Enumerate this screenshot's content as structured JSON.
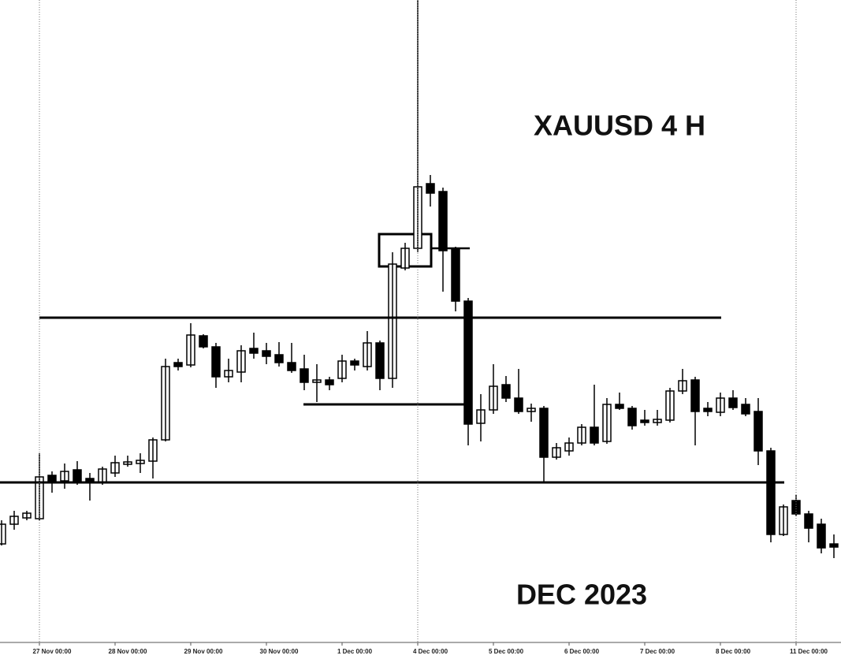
{
  "chart_data": {
    "type": "candlestick",
    "title": "XAUUSD 4 H",
    "subtitle": "DEC 2023",
    "categories": [
      null,
      null,
      null,
      "27 Nov 00:00",
      null,
      null,
      null,
      null,
      null,
      "28 Nov 00:00",
      null,
      null,
      null,
      null,
      null,
      "29 Nov 00:00",
      null,
      null,
      null,
      null,
      null,
      "30 Nov 00:00",
      null,
      null,
      null,
      null,
      null,
      "1 Dec 00:00",
      null,
      null,
      null,
      null,
      null,
      "4 Dec 00:00",
      null,
      null,
      null,
      null,
      null,
      "5 Dec 00:00",
      null,
      null,
      null,
      null,
      null,
      "6 Dec 00:00",
      null,
      null,
      null,
      null,
      null,
      "7 Dec 00:00",
      null,
      null,
      null,
      null,
      null,
      "8 Dec 00:00",
      null,
      null,
      null,
      null,
      null,
      "11 Dec 00:00",
      null,
      null,
      null
    ],
    "open": [
      1997,
      2002,
      2003.6,
      2003.4,
      2014.4,
      2013,
      2015.8,
      2013.6,
      2012.6,
      2015,
      2017.2,
      2017.4,
      2018,
      2023.4,
      2043,
      2042.4,
      2049.8,
      2047,
      2039.4,
      2040.6,
      2046.6,
      2046,
      2045,
      2043,
      2041.4,
      2038.2,
      2038.6,
      2039,
      2043.4,
      2042,
      2048,
      2039,
      2067,
      2072,
      2088.4,
      2086.4,
      2071.8,
      2058.6,
      2027.6,
      2031,
      2037.4,
      2034,
      2030.6,
      2031.4,
      2019,
      2020.6,
      2022.6,
      2026.6,
      2023,
      2032.4,
      2031.4,
      2028.4,
      2027.8,
      2028.4,
      2035.8,
      2038.6,
      2031.4,
      2030.4,
      2034,
      2032.4,
      2030.6,
      2020.6,
      1999.4,
      2008,
      2004.6,
      2002,
      1997
    ],
    "high": [
      2003,
      2005.4,
      2005.4,
      2020,
      2015.4,
      2017.4,
      2018,
      2015,
      2016.6,
      2019.4,
      2019.4,
      2020,
      2024,
      2044,
      2044,
      2053,
      2050.2,
      2048,
      2044,
      2047.4,
      2050.6,
      2048,
      2048.2,
      2048,
      2045,
      2042.6,
      2039.4,
      2045,
      2044,
      2051,
      2048.6,
      2071,
      2073.4,
      2135,
      2090.6,
      2087.4,
      2072.4,
      2059.4,
      2035,
      2042.6,
      2039.6,
      2041.4,
      2032.6,
      2032,
      2022.6,
      2024,
      2027.4,
      2037.4,
      2034,
      2035.4,
      2032,
      2031,
      2031,
      2036.6,
      2041.4,
      2039.4,
      2033,
      2035.4,
      2036,
      2034,
      2034,
      2021.4,
      2007,
      2009.4,
      2005.4,
      2003.4,
      1999.4
    ],
    "low": [
      1996.6,
      2000.6,
      2003,
      2003,
      2010,
      2011,
      2012,
      2008,
      2012,
      2014,
      2016.6,
      2015,
      2013.6,
      2023,
      2041,
      2041.8,
      2046.6,
      2036.6,
      2038,
      2038,
      2044,
      2042.6,
      2042,
      2040.4,
      2036,
      2033,
      2036,
      2038,
      2041,
      2041,
      2036,
      2036.6,
      2066.4,
      2071,
      2082.6,
      2061,
      2056,
      2022,
      2023,
      2030,
      2033,
      2030,
      2028,
      2012.6,
      2018.4,
      2019.4,
      2022,
      2022,
      2022.4,
      2031,
      2026,
      2027,
      2027,
      2027.8,
      2035,
      2022,
      2029.4,
      2029.4,
      2031,
      2029.4,
      2017,
      1997.4,
      1999,
      2004,
      1997.4,
      1994.6,
      1993.4
    ],
    "close": [
      2002,
      2004,
      2004.8,
      2014,
      2012.6,
      2015.4,
      2013,
      2012.6,
      2016,
      2017.6,
      2017.8,
      2018.2,
      2023.4,
      2042,
      2042,
      2050,
      2047,
      2039.4,
      2041,
      2046,
      2045.4,
      2044.6,
      2043,
      2041,
      2038,
      2038.6,
      2037.4,
      2043.4,
      2042.4,
      2048,
      2039,
      2068,
      2072,
      2087.6,
      2086,
      2071.4,
      2058.6,
      2027.4,
      2031,
      2037,
      2034,
      2030.6,
      2031.4,
      2019,
      2021.4,
      2022.6,
      2026.6,
      2022.6,
      2032.4,
      2031.4,
      2027,
      2027.8,
      2028.6,
      2035.8,
      2038.4,
      2030.6,
      2030.6,
      2034,
      2031.6,
      2030,
      2020.6,
      1999.4,
      2006.4,
      2004.6,
      2001,
      1996,
      1996.2
    ],
    "up_color": "#ffffff",
    "down_color": "#000000",
    "levels": [
      2054.4,
      2032.4,
      2012.6
    ],
    "box": [
      2075.6,
      2067.4
    ],
    "ylim": [
      1973,
      2135
    ]
  }
}
